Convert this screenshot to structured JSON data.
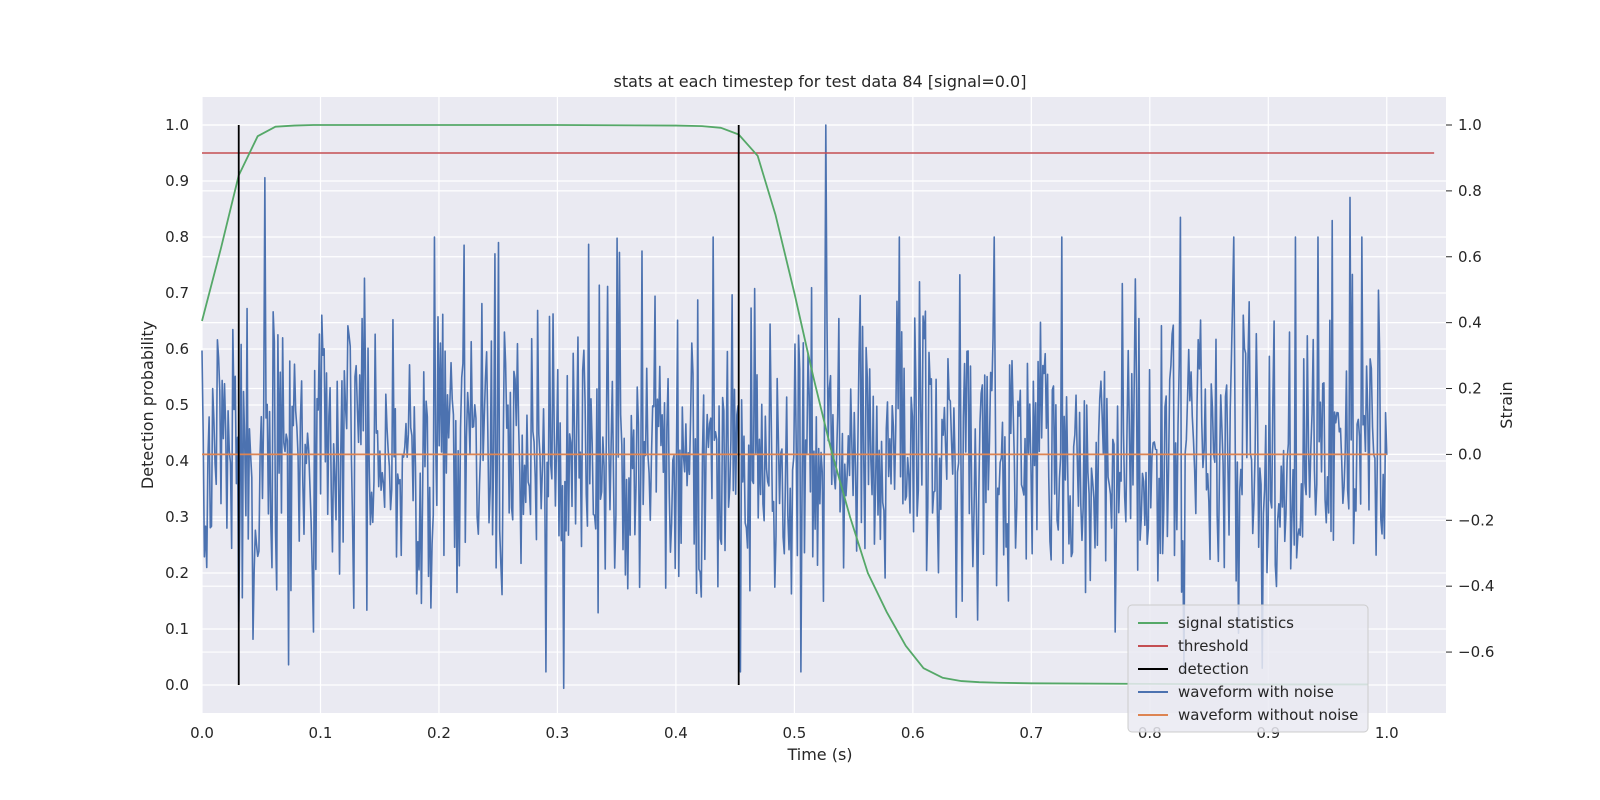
{
  "chart_data": {
    "type": "line",
    "title": "stats at each timestep for test data 84 [signal=0.0]",
    "xlabel": "Time (s)",
    "ylabel": "Detection probability",
    "y2label": "Strain",
    "xlim": [
      0.0,
      1.05
    ],
    "ylim": [
      -0.05,
      1.05
    ],
    "y2lim": [
      -0.785,
      1.085
    ],
    "xticks": [
      0.0,
      0.1,
      0.2,
      0.3,
      0.4,
      0.5,
      0.6,
      0.7,
      0.8,
      0.9,
      1.0
    ],
    "yticks": [
      0.0,
      0.1,
      0.2,
      0.3,
      0.4,
      0.5,
      0.6,
      0.7,
      0.8,
      0.9,
      1.0
    ],
    "y2ticks": [
      -0.6,
      -0.4,
      -0.2,
      0.0,
      0.2,
      0.4,
      0.6,
      0.8,
      1.0
    ],
    "grid": true,
    "legend_position": "lower-right",
    "series": [
      {
        "name": "signal statistics",
        "axis": "left",
        "color": "#55a868",
        "x": [
          0.0,
          0.016,
          0.031,
          0.047,
          0.062,
          0.078,
          0.094,
          0.2,
          0.3,
          0.4,
          0.422,
          0.438,
          0.453,
          0.469,
          0.484,
          0.5,
          0.516,
          0.531,
          0.547,
          0.562,
          0.578,
          0.594,
          0.609,
          0.625,
          0.641,
          0.656,
          0.672,
          0.7,
          0.8,
          0.9,
          0.984
        ],
        "y": [
          0.65,
          0.78,
          0.91,
          0.98,
          0.997,
          0.999,
          1.0,
          1.0,
          1.0,
          0.999,
          0.998,
          0.995,
          0.983,
          0.945,
          0.84,
          0.7,
          0.55,
          0.42,
          0.3,
          0.2,
          0.13,
          0.07,
          0.03,
          0.013,
          0.007,
          0.005,
          0.004,
          0.003,
          0.002,
          0.001,
          0.001
        ]
      },
      {
        "name": "threshold",
        "axis": "left",
        "color": "#c44e52",
        "x": [
          0.0,
          1.04
        ],
        "y": [
          0.95,
          0.95
        ]
      },
      {
        "name": "detection",
        "axis": "left",
        "color": "#000000",
        "segments": [
          {
            "x": 0.031,
            "y": [
              0.0,
              1.0
            ]
          },
          {
            "x": 0.453,
            "y": [
              0.0,
              1.0
            ]
          }
        ]
      },
      {
        "name": "waveform with noise",
        "axis": "right",
        "color": "#4c72b0",
        "x": [
          0.0,
          1.0
        ],
        "n_points": 1000,
        "amplitude": 0.27,
        "peaks": [
          {
            "x": 0.053,
            "y": 0.84
          },
          {
            "x": 0.305,
            "y": 0.64
          },
          {
            "x": 0.305,
            "y": -0.71
          },
          {
            "x": 0.527,
            "y": 1.0
          },
          {
            "x": 0.826,
            "y": 0.72
          },
          {
            "x": 0.954,
            "y": 0.71
          },
          {
            "x": 0.969,
            "y": 0.78
          }
        ]
      },
      {
        "name": "waveform without noise",
        "axis": "right",
        "color": "#dd8452",
        "x": [
          0.0,
          1.0
        ],
        "y": [
          0.0,
          0.0
        ]
      }
    ]
  }
}
